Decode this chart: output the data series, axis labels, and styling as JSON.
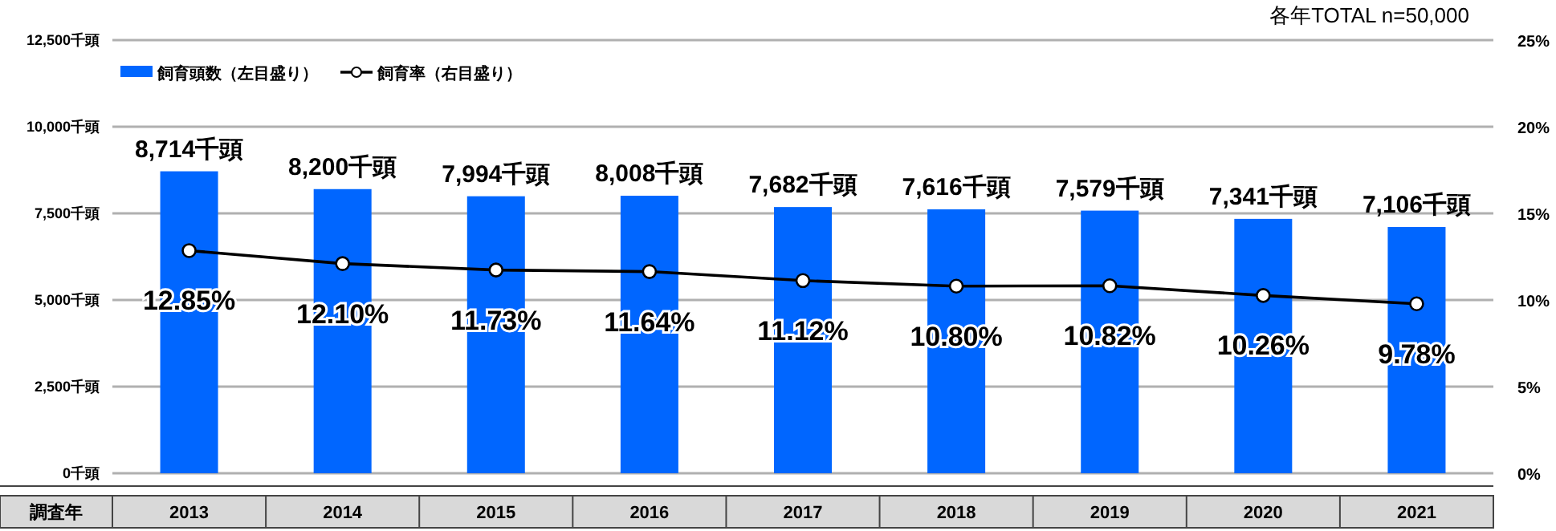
{
  "chart_data": {
    "type": "bar",
    "annotations": [
      "各年TOTAL n=50,000"
    ],
    "xlabel": "調査年",
    "categories": [
      "2013",
      "2014",
      "2015",
      "2016",
      "2017",
      "2018",
      "2019",
      "2020",
      "2021"
    ],
    "series": [
      {
        "name": "飼育頭数（左目盛り）",
        "color": "#0066ff",
        "values": [
          8714,
          8200,
          7994,
          8008,
          7682,
          7616,
          7579,
          7341,
          7106
        ],
        "value_labels": [
          "8,714千頭",
          "8,200千頭",
          "7,994千頭",
          "8,008千頭",
          "7,682千頭",
          "7,616千頭",
          "7,579千頭",
          "7,341千頭",
          "7,106千頭"
        ]
      },
      {
        "name": "飼育率（右目盛り）",
        "type": "line",
        "axis": "y2",
        "color": "#000000",
        "values": [
          12.85,
          12.1,
          11.73,
          11.64,
          11.12,
          10.8,
          10.82,
          10.26,
          9.78
        ],
        "value_labels": [
          "12.85%",
          "12.10%",
          "11.73%",
          "11.64%",
          "11.12%",
          "10.80%",
          "10.82%",
          "10.26%",
          "9.78%"
        ]
      }
    ],
    "ylim": [
      0,
      12500
    ],
    "yticks": [
      {
        "value": 0,
        "label": "0千頭"
      },
      {
        "value": 2500,
        "label": "2,500千頭"
      },
      {
        "value": 5000,
        "label": "5,000千頭"
      },
      {
        "value": 7500,
        "label": "7,500千頭"
      },
      {
        "value": 10000,
        "label": "10,000千頭"
      },
      {
        "value": 12500,
        "label": "12,500千頭"
      }
    ],
    "y2lim": [
      0,
      25
    ],
    "y2ticks": [
      {
        "value": 0,
        "label": "0%"
      },
      {
        "value": 5,
        "label": "5%"
      },
      {
        "value": 10,
        "label": "10%"
      },
      {
        "value": 15,
        "label": "15%"
      },
      {
        "value": 20,
        "label": "20%"
      },
      {
        "value": 25,
        "label": "25%"
      }
    ],
    "grid": "y",
    "legend": "top left",
    "marker": "circle"
  }
}
